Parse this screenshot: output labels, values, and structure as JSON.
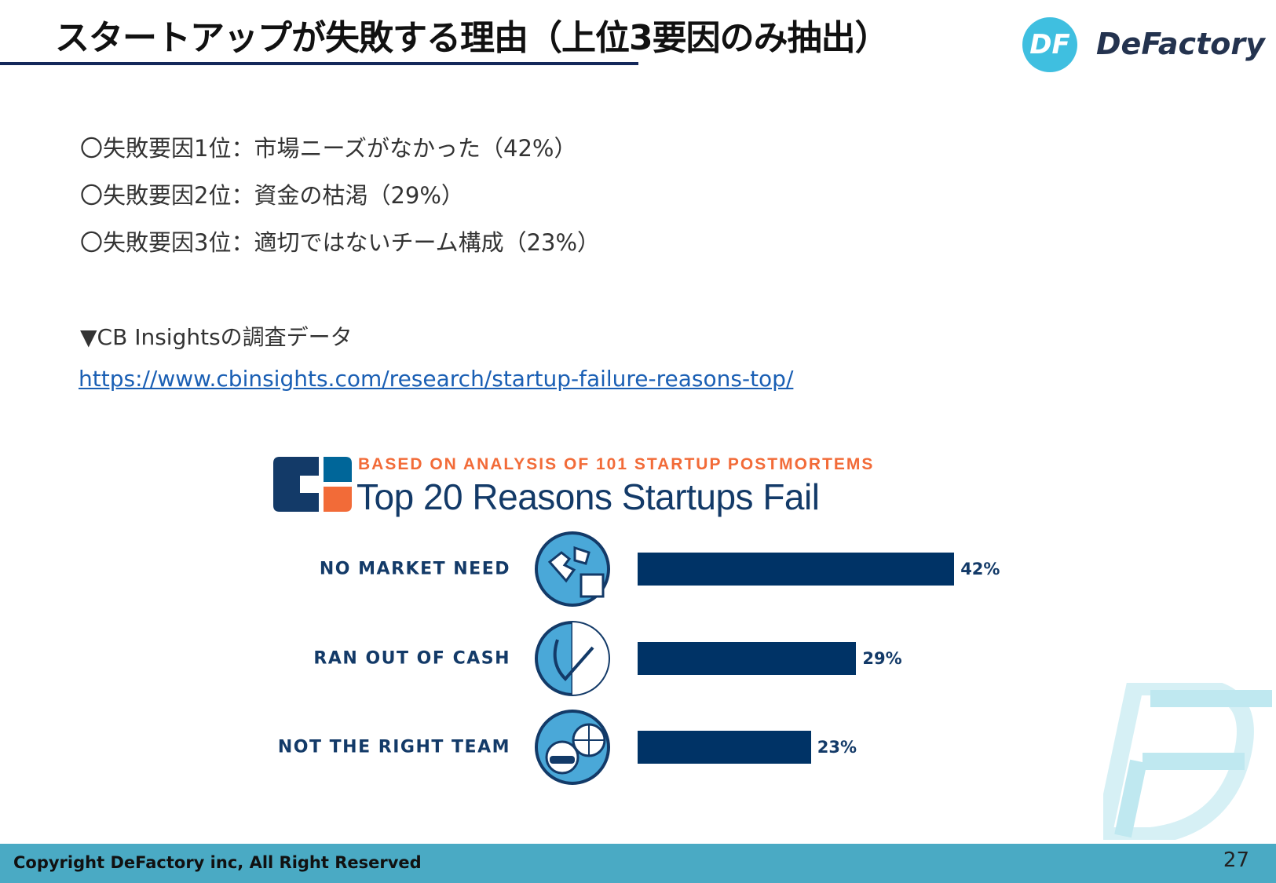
{
  "header": {
    "title": "スタートアップが失敗する理由（上位3要因のみ抽出）",
    "logo_text": "DeFactory",
    "logo_mark": "DF"
  },
  "bullets": [
    "〇失敗要因1位：市場ニーズがなかった（42%）",
    "〇失敗要因2位：資金の枯渇（29%）",
    "〇失敗要因3位：適切ではないチーム構成（23%）"
  ],
  "source": {
    "label": "▼CB Insightsの調査データ",
    "link": "https://www.cbinsights.com/research/startup-failure-reasons-top/"
  },
  "chart_data": {
    "type": "bar",
    "orientation": "horizontal",
    "subtitle": "BASED ON ANALYSIS OF 101 STARTUP POSTMORTEMS",
    "title": "Top 20 Reasons Startups Fail",
    "categories": [
      "NO MARKET NEED",
      "RAN OUT OF CASH",
      "NOT THE RIGHT TEAM"
    ],
    "values": [
      42,
      29,
      23
    ],
    "value_labels": [
      "42%",
      "29%",
      "23%"
    ],
    "icons": [
      "puzzle-icon",
      "wallet-hand-icon",
      "team-globe-icon"
    ],
    "bar_color": "#003366"
  },
  "colors": {
    "accent": "#3fbfe0",
    "footer": "#4aaac4",
    "cb_orange": "#f26b38",
    "cb_navy": "#133a68"
  },
  "footer": {
    "copyright": "Copyright DeFactory inc, All Right Reserved",
    "page": "27"
  }
}
